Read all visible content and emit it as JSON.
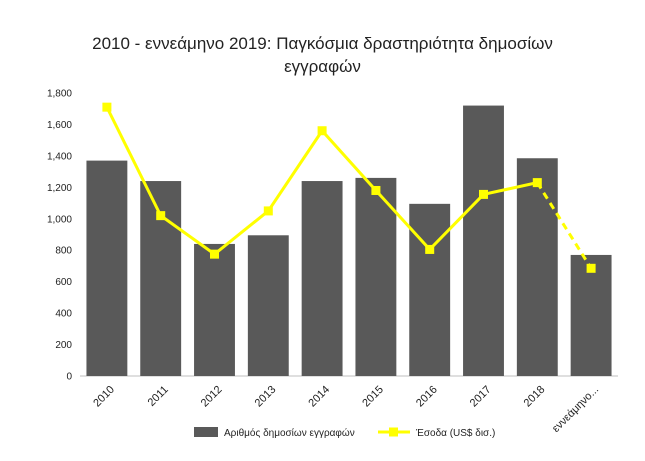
{
  "chart_data": {
    "type": "bar",
    "title_line1": "2010 - εννεάμηνο 2019: Παγκόσμια δραστηριότητα δημοσίων",
    "title_line2": "εγγραφών",
    "categories": [
      "2010",
      "2011",
      "2012",
      "2013",
      "2014",
      "2015",
      "2016",
      "2017",
      "2018",
      "εννεάμηνο..."
    ],
    "series": [
      {
        "name": "Αριθμός δημοσίων εγγραφών",
        "type": "bar",
        "color": "#595959",
        "values": [
          1370,
          1240,
          840,
          895,
          1240,
          1260,
          1095,
          1720,
          1385,
          770
        ]
      },
      {
        "name": "Έσοδα (US$ δισ.)",
        "type": "line",
        "color": "#ffff00",
        "values": [
          1710,
          1020,
          775,
          1050,
          1560,
          1180,
          805,
          1155,
          1230,
          685
        ],
        "dashed_last_segment": true
      }
    ],
    "yticks": [
      "0",
      "200",
      "400",
      "600",
      "800",
      "1,000",
      "1,200",
      "1,400",
      "1,600",
      "1,800"
    ],
    "ylim": [
      0,
      1800
    ],
    "legend_position": "bottom"
  }
}
